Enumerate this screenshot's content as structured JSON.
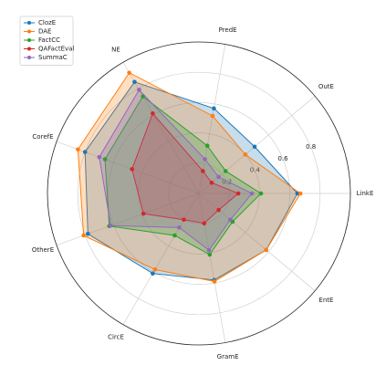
{
  "chart_data": {
    "type": "radar",
    "categories": [
      "LinkE",
      "OutE",
      "PredE",
      "NE",
      "CorefE",
      "OtherE",
      "CircE",
      "GramE",
      "EntE"
    ],
    "series": [
      {
        "name": "ClozE",
        "color": "#1f77b4",
        "values": [
          0.65,
          0.48,
          0.57,
          0.85,
          0.8,
          0.78,
          0.61,
          0.58,
          0.58
        ]
      },
      {
        "name": "DAE",
        "color": "#ff7f0e",
        "values": [
          0.67,
          0.4,
          0.52,
          0.92,
          0.85,
          0.81,
          0.58,
          0.59,
          0.58
        ]
      },
      {
        "name": "FactCC",
        "color": "#2ca02c",
        "values": [
          0.41,
          0.23,
          0.32,
          0.74,
          0.66,
          0.63,
          0.32,
          0.41,
          0.29
        ]
      },
      {
        "name": "QAFactEval",
        "color": "#d62728",
        "values": [
          0.26,
          0.11,
          0.15,
          0.61,
          0.47,
          0.39,
          0.2,
          0.2,
          0.17
        ]
      },
      {
        "name": "SummaC",
        "color": "#9467bd",
        "values": [
          0.35,
          0.17,
          0.23,
          0.79,
          0.7,
          0.62,
          0.26,
          0.38,
          0.27
        ]
      }
    ],
    "ylim": [
      0,
      1.0
    ],
    "yticks": [
      0.2,
      0.4,
      0.6,
      0.8
    ],
    "grid": true,
    "legend": "upper left"
  }
}
